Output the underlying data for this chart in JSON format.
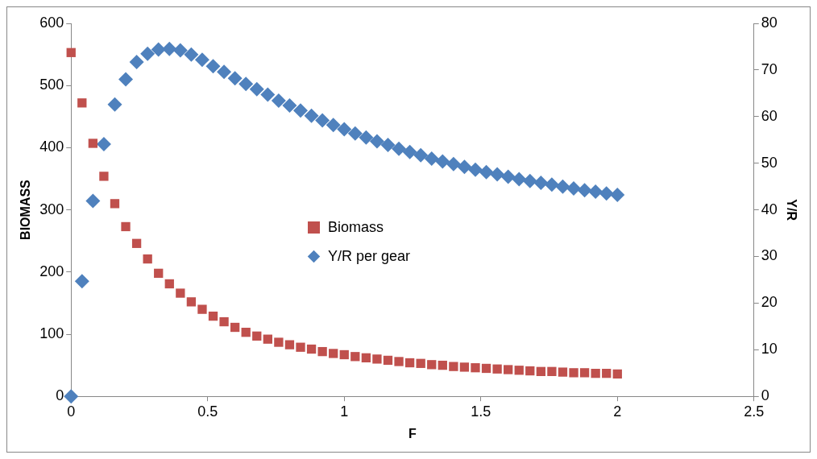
{
  "chart_data": {
    "type": "scatter",
    "xlabel": "F",
    "ylabel": "BIOMASS",
    "y2label": "Y/R",
    "x": [
      0,
      0.04,
      0.08,
      0.12,
      0.16,
      0.2,
      0.24,
      0.28,
      0.32,
      0.36,
      0.4,
      0.44,
      0.48,
      0.52,
      0.56,
      0.6,
      0.64,
      0.68,
      0.72,
      0.76,
      0.8,
      0.84,
      0.88,
      0.92,
      0.96,
      1.0,
      1.04,
      1.08,
      1.12,
      1.16,
      1.2,
      1.24,
      1.28,
      1.32,
      1.36,
      1.4,
      1.44,
      1.48,
      1.52,
      1.56,
      1.6,
      1.64,
      1.68,
      1.72,
      1.76,
      1.8,
      1.84,
      1.88,
      1.92,
      1.96,
      2.0
    ],
    "series": [
      {
        "name": "Biomass",
        "color": "#c0504d",
        "marker": "square",
        "values": [
          553,
          472,
          407,
          354,
          310,
          273,
          246,
          221,
          198,
          181,
          166,
          152,
          140,
          129,
          120,
          111,
          103,
          97,
          92,
          87,
          83,
          79,
          76,
          72,
          69,
          67,
          64,
          62,
          60,
          58,
          56,
          54,
          53,
          51,
          50,
          48,
          47,
          46,
          45,
          44,
          43,
          42,
          41,
          40,
          40,
          39,
          38,
          38,
          37,
          37,
          36
        ]
      },
      {
        "name": "Y/R per gear",
        "color": "#4f81bd",
        "marker": "diamond",
        "axis": "y2",
        "values": [
          0,
          24.7,
          41.9,
          54.1,
          62.6,
          68,
          71.7,
          73.5,
          74.4,
          74.5,
          74.2,
          73.3,
          72.2,
          70.8,
          69.6,
          68.2,
          67,
          65.9,
          64.7,
          63.4,
          62.4,
          61.3,
          60.2,
          59.2,
          58.2,
          57.3,
          56.4,
          55.5,
          54.7,
          53.9,
          53.1,
          52.4,
          51.7,
          51,
          50.4,
          49.8,
          49.2,
          48.6,
          48.1,
          47.6,
          47.1,
          46.6,
          46.2,
          45.8,
          45.4,
          45,
          44.6,
          44.2,
          43.9,
          43.5,
          43.2
        ]
      }
    ],
    "xlim": [
      0,
      2.5
    ],
    "xticks": [
      0,
      0.5,
      1,
      1.5,
      2,
      2.5
    ],
    "ylim": [
      0,
      600
    ],
    "yticks": [
      0,
      100,
      200,
      300,
      400,
      500,
      600
    ],
    "y2lim": [
      0,
      80
    ],
    "y2ticks": [
      0,
      10,
      20,
      30,
      40,
      50,
      60,
      70,
      80
    ],
    "grid": false,
    "legend": "center"
  }
}
